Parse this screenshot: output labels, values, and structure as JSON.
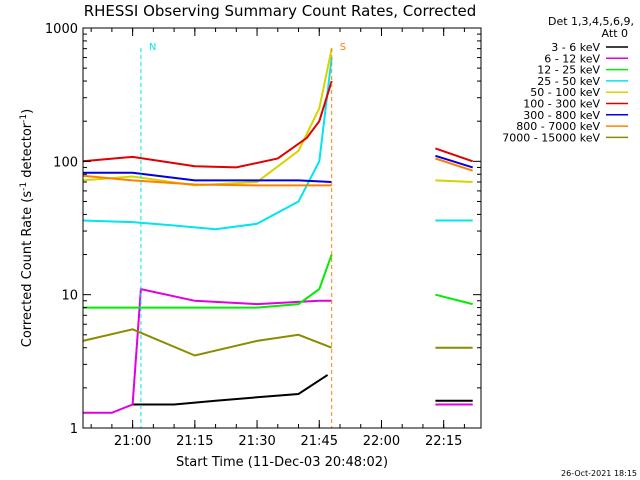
{
  "chart_data": {
    "type": "line",
    "title": "RHESSI Observing Summary Count Rates, Corrected",
    "xlabel": "Start Time (11-Dec-03 20:48:02)",
    "ylabel_main": "Corrected Count Rate (s",
    "ylabel_sup1": "-1",
    "ylabel_mid": " detector",
    "ylabel_sup2": "-1",
    "ylabel_end": ")",
    "yscale": "log",
    "ylim": [
      1,
      1000
    ],
    "xlim": [
      "20:48:02",
      "22:24:00"
    ],
    "x_ticks": [
      "21:00",
      "21:15",
      "21:30",
      "21:45",
      "22:00",
      "22:15"
    ],
    "y_ticks": [
      "1",
      "10",
      "100",
      "1000"
    ],
    "legend_header1": "Det 1,3,4,5,6,9,",
    "legend_header2": "Att 0",
    "legend_position": "right",
    "timestamp": "26-Oct-2021 18:15",
    "series": [
      {
        "name": "3 - 6 keV",
        "color": "#000000",
        "points": [
          [
            "21:00",
            1.5
          ],
          [
            "21:10",
            1.5
          ],
          [
            "21:20",
            1.6
          ],
          [
            "21:30",
            1.7
          ],
          [
            "21:40",
            1.8
          ],
          [
            "21:47",
            2.5
          ],
          [
            "22:13",
            1.6
          ],
          [
            "22:22",
            1.6
          ]
        ]
      },
      {
        "name": "6 - 12 keV",
        "color": "#e000e0",
        "points": [
          [
            "20:48",
            1.3
          ],
          [
            "20:55",
            1.3
          ],
          [
            "21:00",
            1.5
          ],
          [
            "21:02",
            11
          ],
          [
            "21:15",
            9
          ],
          [
            "21:30",
            8.5
          ],
          [
            "21:45",
            9
          ],
          [
            "21:48",
            9
          ],
          [
            "22:13",
            1.5
          ],
          [
            "22:22",
            1.5
          ]
        ]
      },
      {
        "name": "12 - 25 keV",
        "color": "#00ee00",
        "points": [
          [
            "20:48",
            8
          ],
          [
            "21:00",
            8
          ],
          [
            "21:15",
            8
          ],
          [
            "21:30",
            8
          ],
          [
            "21:40",
            8.5
          ],
          [
            "21:45",
            11
          ],
          [
            "21:48",
            20
          ],
          [
            "22:13",
            10
          ],
          [
            "22:22",
            8.5
          ]
        ]
      },
      {
        "name": "25 - 50 keV",
        "color": "#00e5ee",
        "points": [
          [
            "20:48",
            36
          ],
          [
            "21:00",
            35
          ],
          [
            "21:10",
            33
          ],
          [
            "21:20",
            31
          ],
          [
            "21:30",
            34
          ],
          [
            "21:40",
            50
          ],
          [
            "21:45",
            100
          ],
          [
            "21:48",
            600
          ],
          [
            "22:13",
            36
          ],
          [
            "22:22",
            36
          ]
        ]
      },
      {
        "name": "50 - 100 keV",
        "color": "#d4d400",
        "points": [
          [
            "20:48",
            72
          ],
          [
            "21:00",
            77
          ],
          [
            "21:15",
            66
          ],
          [
            "21:30",
            70
          ],
          [
            "21:40",
            120
          ],
          [
            "21:45",
            250
          ],
          [
            "21:48",
            700
          ],
          [
            "22:13",
            72
          ],
          [
            "22:22",
            70
          ]
        ]
      },
      {
        "name": "100 - 300 keV",
        "color": "#e00000",
        "points": [
          [
            "20:48",
            100
          ],
          [
            "21:00",
            108
          ],
          [
            "21:15",
            92
          ],
          [
            "21:25",
            90
          ],
          [
            "21:35",
            105
          ],
          [
            "21:42",
            150
          ],
          [
            "21:45",
            200
          ],
          [
            "21:48",
            400
          ],
          [
            "22:13",
            125
          ],
          [
            "22:22",
            100
          ]
        ]
      },
      {
        "name": "300 - 800 keV",
        "color": "#0000e0",
        "points": [
          [
            "20:48",
            82
          ],
          [
            "21:00",
            82
          ],
          [
            "21:15",
            72
          ],
          [
            "21:30",
            72
          ],
          [
            "21:40",
            72
          ],
          [
            "21:48",
            70
          ],
          [
            "22:13",
            110
          ],
          [
            "22:22",
            90
          ]
        ]
      },
      {
        "name": "800 - 7000 keV",
        "color": "#ff8000",
        "points": [
          [
            "20:48",
            78
          ],
          [
            "21:00",
            72
          ],
          [
            "21:15",
            67
          ],
          [
            "21:30",
            66
          ],
          [
            "21:40",
            66
          ],
          [
            "21:48",
            66
          ],
          [
            "22:13",
            105
          ],
          [
            "22:22",
            85
          ]
        ]
      },
      {
        "name": "7000 - 15000 keV",
        "color": "#8b8b00",
        "points": [
          [
            "20:48",
            4.5
          ],
          [
            "21:00",
            5.5
          ],
          [
            "21:15",
            3.5
          ],
          [
            "21:30",
            4.5
          ],
          [
            "21:40",
            5
          ],
          [
            "21:48",
            4
          ],
          [
            "22:13",
            4
          ],
          [
            "22:22",
            4
          ]
        ]
      }
    ],
    "annotations": [
      {
        "label": "N",
        "color": "#00e5ee",
        "x": "21:02"
      },
      {
        "label": "S",
        "color": "#ff8000",
        "x": "21:48"
      }
    ]
  }
}
